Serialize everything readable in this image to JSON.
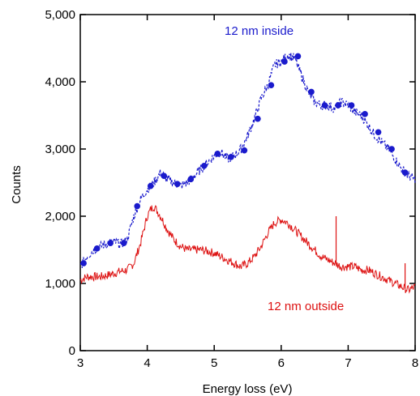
{
  "chart_data": {
    "type": "line",
    "xlabel": "Energy loss (eV)",
    "ylabel": "Counts",
    "xlim": [
      3,
      8
    ],
    "ylim": [
      0,
      5000
    ],
    "x_ticks": [
      "3",
      "4",
      "5",
      "6",
      "7",
      "8"
    ],
    "y_ticks": [
      "0",
      "1,000",
      "2,000",
      "3,000",
      "4,000",
      "5,000"
    ],
    "grid": false,
    "series": [
      {
        "name": "12 nm inside",
        "color": "#1a1acc",
        "style": "dashed-with-markers",
        "x": [
          3.0,
          3.1,
          3.2,
          3.3,
          3.4,
          3.5,
          3.6,
          3.7,
          3.8,
          3.9,
          4.0,
          4.1,
          4.2,
          4.3,
          4.4,
          4.5,
          4.6,
          4.7,
          4.8,
          4.9,
          5.0,
          5.1,
          5.2,
          5.3,
          5.4,
          5.5,
          5.6,
          5.7,
          5.8,
          5.9,
          6.0,
          6.1,
          6.2,
          6.3,
          6.4,
          6.5,
          6.6,
          6.7,
          6.8,
          6.9,
          7.0,
          7.1,
          7.2,
          7.3,
          7.4,
          7.5,
          7.6,
          7.7,
          7.8,
          7.9,
          8.0
        ],
        "y": [
          1250,
          1400,
          1500,
          1550,
          1600,
          1620,
          1580,
          1650,
          2000,
          2250,
          2400,
          2500,
          2650,
          2550,
          2500,
          2450,
          2500,
          2600,
          2700,
          2800,
          2900,
          2950,
          2850,
          2900,
          3000,
          3200,
          3450,
          3750,
          3950,
          4250,
          4300,
          4400,
          4350,
          4100,
          3850,
          3700,
          3650,
          3650,
          3600,
          3700,
          3650,
          3550,
          3500,
          3350,
          3200,
          3100,
          3000,
          2850,
          2700,
          2600,
          2550
        ],
        "markers_x": [
          3.05,
          3.25,
          3.45,
          3.65,
          3.85,
          4.05,
          4.25,
          4.45,
          4.65,
          4.85,
          5.05,
          5.25,
          5.45,
          5.65,
          5.85,
          6.05,
          6.25,
          6.45,
          6.65,
          6.85,
          7.05,
          7.25,
          7.45,
          7.65,
          7.85
        ],
        "markers_y": [
          1300,
          1520,
          1600,
          1600,
          2150,
          2450,
          2600,
          2480,
          2550,
          2750,
          2930,
          2880,
          2980,
          3450,
          3950,
          4300,
          4380,
          3850,
          3650,
          3650,
          3650,
          3520,
          3250,
          3000,
          2650
        ]
      },
      {
        "name": "12 nm outside",
        "color": "#dd1111",
        "style": "solid-noisy",
        "x": [
          3.0,
          3.1,
          3.2,
          3.3,
          3.4,
          3.5,
          3.6,
          3.7,
          3.8,
          3.9,
          4.0,
          4.05,
          4.1,
          4.2,
          4.3,
          4.4,
          4.5,
          4.6,
          4.7,
          4.8,
          4.9,
          5.0,
          5.1,
          5.2,
          5.3,
          5.4,
          5.5,
          5.6,
          5.7,
          5.8,
          5.9,
          6.0,
          6.1,
          6.2,
          6.3,
          6.4,
          6.5,
          6.6,
          6.7,
          6.8,
          6.9,
          7.0,
          7.1,
          7.2,
          7.3,
          7.4,
          7.5,
          7.6,
          7.7,
          7.8,
          7.9,
          8.0
        ],
        "y": [
          1050,
          1100,
          1100,
          1100,
          1120,
          1150,
          1180,
          1200,
          1300,
          1600,
          2000,
          2100,
          2150,
          2000,
          1800,
          1650,
          1550,
          1500,
          1500,
          1500,
          1480,
          1450,
          1400,
          1350,
          1300,
          1250,
          1300,
          1400,
          1550,
          1750,
          1900,
          1950,
          1900,
          1800,
          1700,
          1600,
          1500,
          1400,
          1350,
          1300,
          1250,
          1250,
          1250,
          1200,
          1200,
          1150,
          1100,
          1050,
          1000,
          950,
          900,
          950
        ],
        "spikes": [
          {
            "x": 6.82,
            "y": 2000
          },
          {
            "x": 7.85,
            "y": 1300
          }
        ]
      }
    ],
    "annotations": [
      "12 nm inside",
      "12 nm outside"
    ]
  }
}
